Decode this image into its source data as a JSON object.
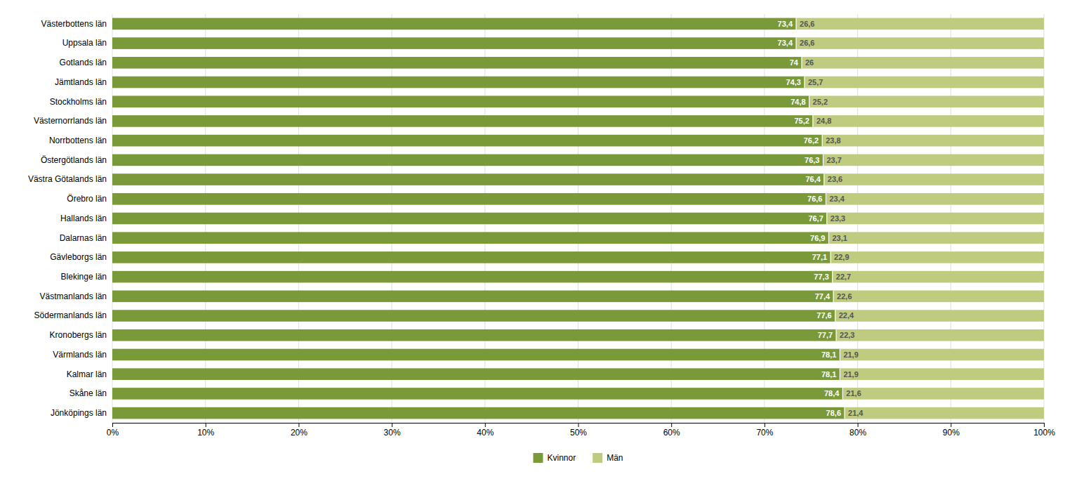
{
  "chart_data": {
    "type": "bar",
    "orientation": "horizontal",
    "stacked": true,
    "data_labels": true,
    "grid": true,
    "legend": "bottom",
    "categories": [
      "Västerbottens län",
      "Uppsala län",
      "Gotlands län",
      "Jämtlands län",
      "Stockholms län",
      "Västernorrlands län",
      "Norrbottens län",
      "Östergötlands län",
      "Västra Götalands län",
      "Örebro län",
      "Hallands län",
      "Dalarnas län",
      "Gävleborgs län",
      "Blekinge län",
      "Västmanlands län",
      "Södermanlands län",
      "Kronobergs län",
      "Värmlands län",
      "Kalmar län",
      "Skåne län",
      "Jönköpings län"
    ],
    "series": [
      {
        "name": "Kvinnor",
        "color": "#7A9A3A",
        "values": [
          73.4,
          73.4,
          74.0,
          74.3,
          74.8,
          75.2,
          76.2,
          76.3,
          76.4,
          76.6,
          76.7,
          76.9,
          77.1,
          77.3,
          77.4,
          77.6,
          77.7,
          78.1,
          78.1,
          78.4,
          78.6
        ],
        "value_labels": [
          "73,4",
          "73,4",
          "74",
          "74,3",
          "74,8",
          "75,2",
          "76,2",
          "76,3",
          "76,4",
          "76,6",
          "76,7",
          "76,9",
          "77,1",
          "77,3",
          "77,4",
          "77,6",
          "77,7",
          "78,1",
          "78,1",
          "78,4",
          "78,6"
        ]
      },
      {
        "name": "Män",
        "color": "#BFCC80",
        "values": [
          26.6,
          26.6,
          26.0,
          25.7,
          25.2,
          24.8,
          23.8,
          23.7,
          23.6,
          23.4,
          23.3,
          23.1,
          22.9,
          22.7,
          22.6,
          22.4,
          22.3,
          21.9,
          21.9,
          21.6,
          21.4
        ],
        "value_labels": [
          "26,6",
          "26,6",
          "26",
          "25,7",
          "25,2",
          "24,8",
          "23,8",
          "23,7",
          "23,6",
          "23,4",
          "23,3",
          "23,1",
          "22,9",
          "22,7",
          "22,6",
          "22,4",
          "22,3",
          "21,9",
          "21,9",
          "21,6",
          "21,4"
        ]
      }
    ],
    "xlim": [
      0,
      100
    ],
    "xticks": [
      {
        "value": 0,
        "label": "0%"
      },
      {
        "value": 10,
        "label": "10%"
      },
      {
        "value": 20,
        "label": "20%"
      },
      {
        "value": 30,
        "label": "30%"
      },
      {
        "value": 40,
        "label": "40%"
      },
      {
        "value": 50,
        "label": "50%"
      },
      {
        "value": 60,
        "label": "60%"
      },
      {
        "value": 70,
        "label": "70%"
      },
      {
        "value": 80,
        "label": "80%"
      },
      {
        "value": 90,
        "label": "90%"
      },
      {
        "value": 100,
        "label": "100%"
      }
    ]
  }
}
